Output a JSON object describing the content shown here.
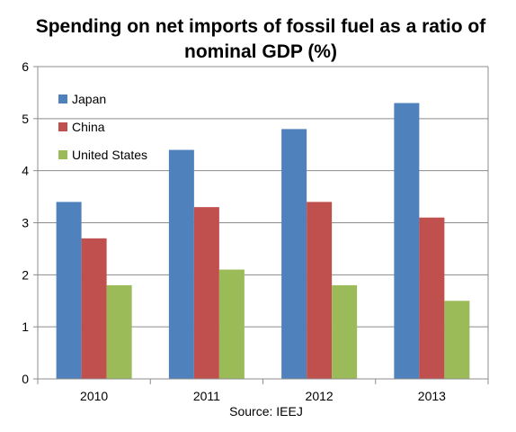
{
  "chart_data": {
    "type": "bar",
    "title": "Spending on net imports of fossil fuel as a ratio of nominal GDP (%)",
    "title_lines": [
      "Spending on net imports of fossil fuel as a ratio of",
      "nominal GDP (%)"
    ],
    "categories": [
      "2010",
      "2011",
      "2012",
      "2013"
    ],
    "series": [
      {
        "name": "Japan",
        "color": "#4F81BD",
        "values": [
          3.4,
          4.4,
          4.8,
          5.3
        ]
      },
      {
        "name": "China",
        "color": "#C0504D",
        "values": [
          2.7,
          3.3,
          3.4,
          3.1
        ]
      },
      {
        "name": "United States",
        "color": "#9BBB59",
        "values": [
          1.8,
          2.1,
          1.8,
          1.5
        ]
      }
    ],
    "ylim": [
      0,
      6
    ],
    "yticks": [
      "0",
      "1",
      "2",
      "3",
      "4",
      "5",
      "6"
    ],
    "grid": true,
    "legend_position": "top-left",
    "source": "Source: IEEJ"
  }
}
